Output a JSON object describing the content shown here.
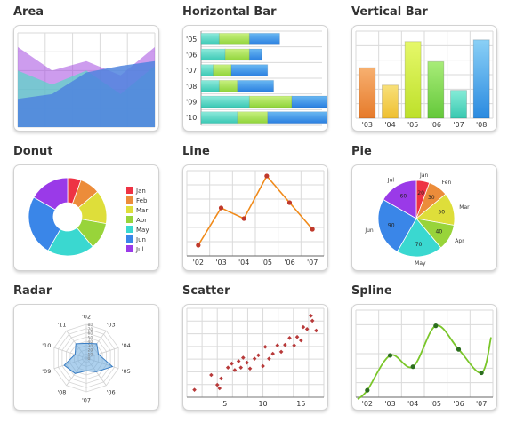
{
  "gallery": [
    {
      "title": "Area"
    },
    {
      "title": "Horizontal Bar"
    },
    {
      "title": "Vertical Bar"
    },
    {
      "title": "Donut"
    },
    {
      "title": "Line"
    },
    {
      "title": "Pie"
    },
    {
      "title": "Radar"
    },
    {
      "title": "Scatter"
    },
    {
      "title": "Spline"
    }
  ],
  "colors": {
    "Jan": "#ee3344",
    "Feb": "#ec8c3a",
    "Mar": "#dede3a",
    "Apr": "#98d43a",
    "May": "#3ad8d0",
    "Jun": "#3a86e8",
    "Jul": "#9a3ae8",
    "line": "#f08a1a",
    "line_point": "#c0392b",
    "spline": "#7ac62a",
    "spline_point": "#2c6e1e",
    "scatter_point": "#b83a3a",
    "radar": "#6aaade"
  },
  "chart_data": [
    {
      "type": "area",
      "categories": [
        "",
        "",
        "",
        "",
        ""
      ],
      "series": [
        {
          "values": [
            30,
            35,
            58,
            65,
            70
          ]
        },
        {
          "values": [
            60,
            45,
            60,
            35,
            65
          ]
        },
        {
          "values": [
            85,
            60,
            70,
            55,
            85
          ]
        }
      ],
      "ylim": [
        0,
        100
      ]
    },
    {
      "type": "bar",
      "orientation": "horizontal",
      "categories": [
        "'05",
        "'06",
        "'07",
        "'08",
        "'09",
        "'10"
      ],
      "series": [
        {
          "values": [
            15,
            20,
            10,
            15,
            40,
            30
          ]
        },
        {
          "values": [
            25,
            20,
            15,
            15,
            35,
            25
          ]
        },
        {
          "values": [
            25,
            10,
            30,
            30,
            30,
            50
          ]
        }
      ],
      "xlim": [
        0,
        100
      ]
    },
    {
      "type": "bar",
      "categories": [
        "'03",
        "'04",
        "'05",
        "'06",
        "'07",
        "'08"
      ],
      "values": [
        58,
        38,
        88,
        65,
        32,
        90
      ],
      "ylim": [
        0,
        100
      ]
    },
    {
      "type": "pie",
      "style": "donut",
      "categories": [
        "Jan",
        "Feb",
        "Mar",
        "Apr",
        "May",
        "Jun",
        "Jul"
      ],
      "values": [
        20,
        30,
        50,
        40,
        70,
        90,
        60
      ]
    },
    {
      "type": "line",
      "categories": [
        "'02",
        "'03",
        "'04",
        "'05",
        "'06",
        "'07"
      ],
      "values": [
        10,
        45,
        35,
        75,
        50,
        25
      ],
      "ylim": [
        0,
        80
      ],
      "grid": true
    },
    {
      "type": "pie",
      "categories": [
        "Jan",
        "Fen",
        "Mar",
        "Apr",
        "May",
        "Jun",
        "Jul"
      ],
      "values": [
        20,
        30,
        50,
        40,
        70,
        90,
        60
      ]
    },
    {
      "type": "radar",
      "categories": [
        "'02",
        "'03",
        "'04",
        "'05",
        "'06",
        "'07",
        "'08",
        "'09",
        "'10",
        "'11"
      ],
      "values": [
        35,
        42,
        30,
        65,
        40,
        30,
        45,
        55,
        28,
        42
      ],
      "ticks": [
        "0",
        "10",
        "20",
        "30",
        "40",
        "50",
        "60",
        "70",
        "80"
      ],
      "ylim": [
        0,
        80
      ]
    },
    {
      "type": "scatter",
      "xticks": [
        "5",
        "10",
        "15"
      ],
      "x": [
        1,
        3.2,
        4,
        4.3,
        4.5,
        5.4,
        5.9,
        6.3,
        6.8,
        7.1,
        7.4,
        7.9,
        8.3,
        8.9,
        9.4,
        10,
        10.3,
        10.8,
        11.3,
        11.9,
        12.4,
        12.9,
        13.5,
        14.1,
        14.5,
        15,
        15.3,
        15.8,
        16.3,
        16.5,
        17
      ],
      "y": [
        1.5,
        4.5,
        2.5,
        1.8,
        3.8,
        6,
        6.8,
        5.5,
        7.3,
        6,
        8,
        7,
        5.8,
        7.8,
        8.5,
        6.3,
        10.2,
        7.8,
        8.8,
        10.5,
        9.2,
        10.6,
        12,
        10.5,
        12.2,
        11.5,
        14.2,
        13.8,
        16.5,
        15.5,
        13.5
      ],
      "xlim": [
        0,
        18
      ],
      "ylim": [
        0,
        18
      ],
      "grid": true
    },
    {
      "type": "line",
      "style": "spline",
      "categories": [
        "'02",
        "'03",
        "'04",
        "'05",
        "'06",
        "'07"
      ],
      "values": [
        8,
        48,
        35,
        82,
        55,
        28
      ],
      "ylim": [
        0,
        100
      ],
      "grid": true
    }
  ]
}
